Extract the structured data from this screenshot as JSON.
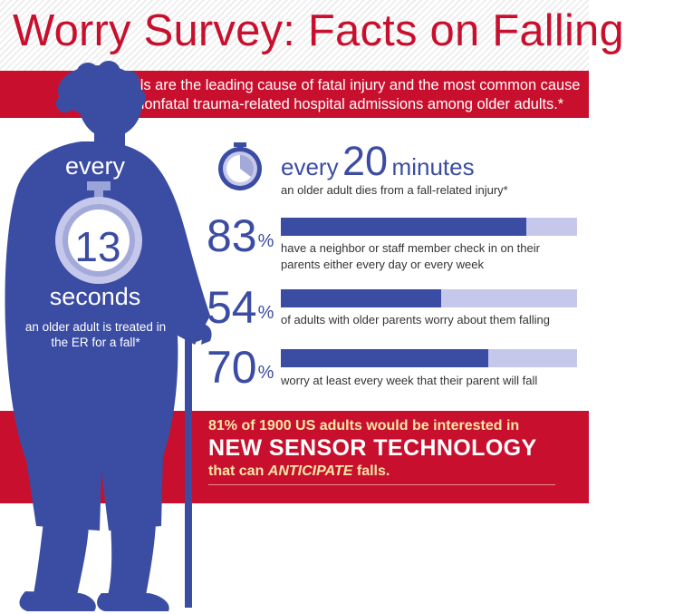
{
  "header": {
    "title": "Worry Survey: Facts on Falling",
    "intro": "Falls are the leading cause of fatal injury and the most common cause of nonfatal trauma-related hospital admissions among older adults.*"
  },
  "figure": {
    "top_word": "every",
    "number": "13",
    "unit": "seconds",
    "caption": "an older adult is treated in the ER for a fall*"
  },
  "minutes_stat": {
    "prefix": "every",
    "number": "20",
    "unit": "minutes",
    "caption": "an older adult dies from a fall-related injury*"
  },
  "stats": [
    {
      "value": 83,
      "label": "83",
      "unit": "%",
      "text": "have a neighbor or staff member check in on their parents either every day or every week"
    },
    {
      "value": 54,
      "label": "54",
      "unit": "%",
      "text": "of adults with older parents worry about them falling"
    },
    {
      "value": 70,
      "label": "70",
      "unit": "%",
      "text": "worry at least every week that their parent will fall"
    }
  ],
  "banner": {
    "line1": "81% of 1900 US adults would be interested in",
    "line2": "NEW SENSOR TECHNOLOGY",
    "line3_pre": "that can",
    "line3_em": "ANTICIPATE",
    "line3_post": "falls."
  },
  "colors": {
    "brand_red": "#c8102e",
    "figure_blue": "#3b4ca3",
    "bar_track": "#c5c8eb",
    "accent_yellow": "#f6e7a6"
  },
  "icons": [
    "stopwatch-icon",
    "elderly-person-with-cane-silhouette"
  ]
}
